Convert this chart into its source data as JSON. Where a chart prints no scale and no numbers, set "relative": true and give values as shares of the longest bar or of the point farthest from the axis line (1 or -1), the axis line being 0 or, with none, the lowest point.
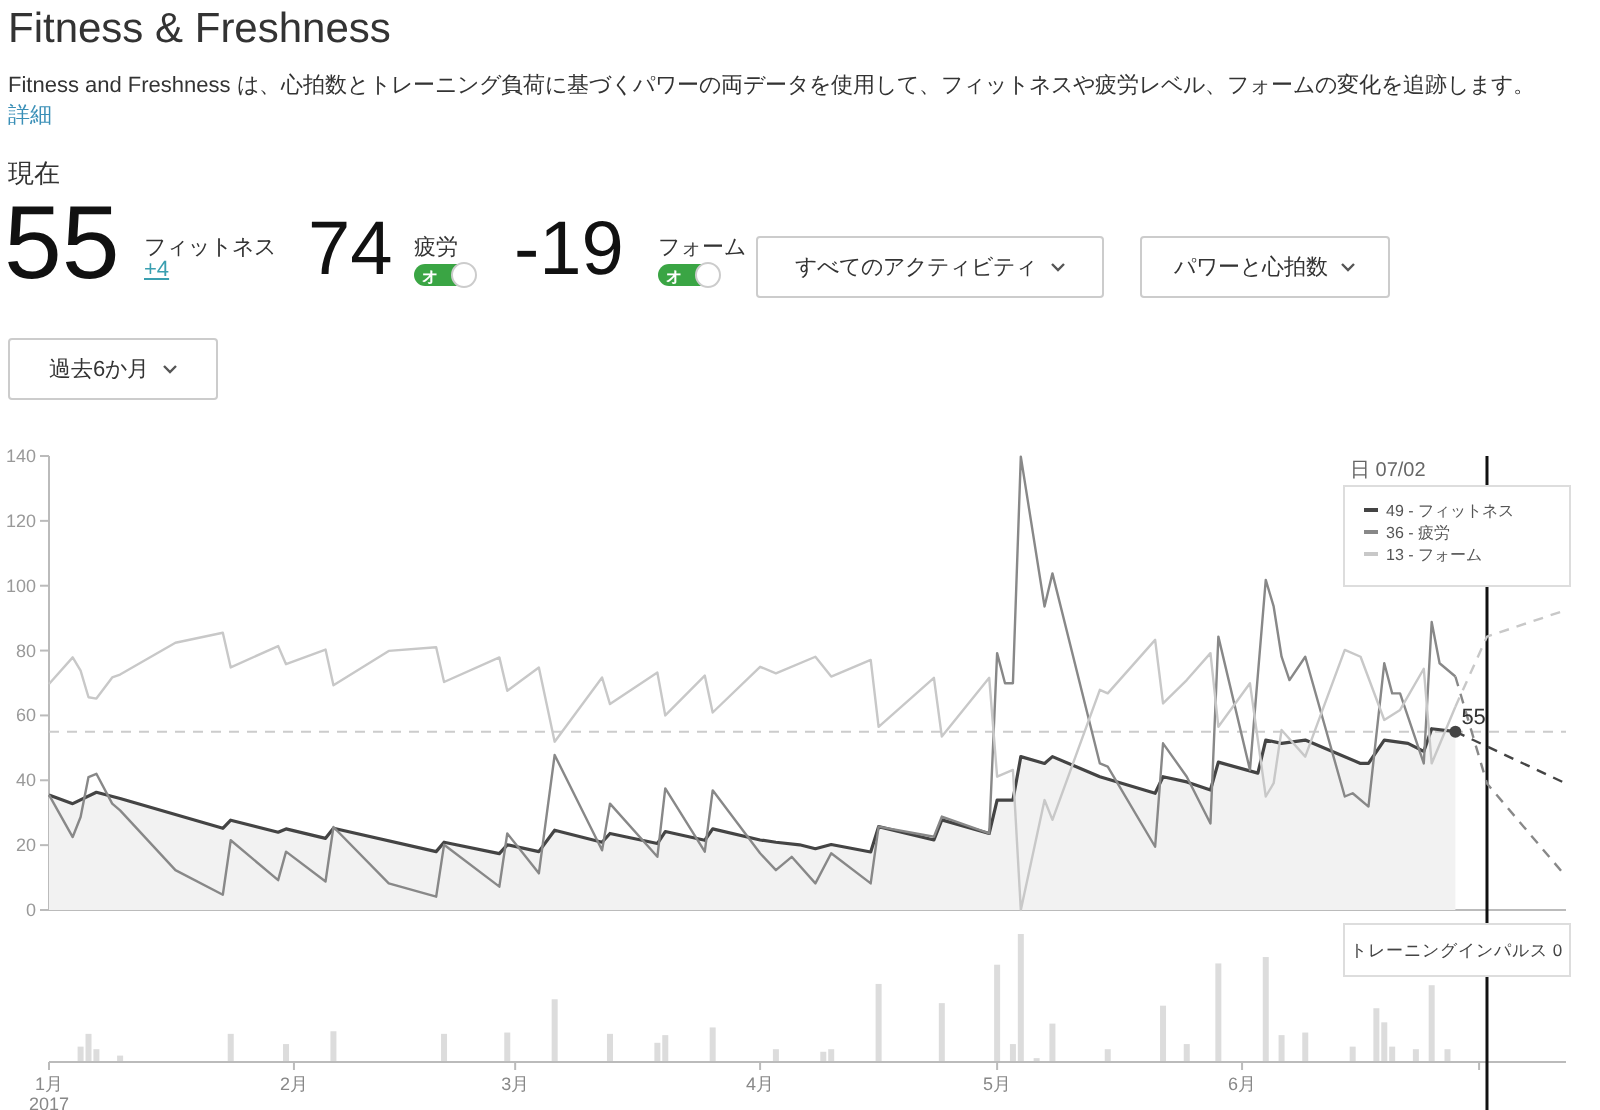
{
  "chart_data": [
    {
      "type": "other",
      "title": "Fitness & Freshness",
      "subtitle": "Fitness and Freshness は、心拍数とトレーニング負荷に基づくパワーの両データを使用して、フィットネスや疲労レベル、フォームの変化を追跡します。",
      "annotations": [
        "詳細",
        "現在",
        "55",
        "フィットネス",
        "+4",
        "74",
        "疲労",
        "-19",
        "フォーム",
        "すべてのアクティビティ",
        "パワーと心拍数",
        "過去6か月",
        "オ",
        "オ"
      ]
    },
    {
      "type": "line",
      "xlim": [
        "2017-01-01",
        "2017-07-12"
      ],
      "ylim": [
        0,
        140
      ],
      "yticks": [
        0,
        20,
        40,
        60,
        80,
        100,
        120,
        140
      ],
      "tick_labels": "y",
      "legend": "top right",
      "legend_title": "日 07/02",
      "series": [
        {
          "name": "49 - フィットネス",
          "type": "area",
          "color": "#444444",
          "x": [
            "2017-01-01",
            "2017-01-04",
            "2017-01-07",
            "2017-01-10",
            "2017-01-23",
            "2017-01-24",
            "2017-01-30",
            "2017-01-31",
            "2017-02-05",
            "2017-02-06",
            "2017-02-19",
            "2017-02-20",
            "2017-02-27",
            "2017-02-28",
            "2017-03-04",
            "2017-03-06",
            "2017-03-12",
            "2017-03-13",
            "2017-03-19",
            "2017-03-20",
            "2017-03-25",
            "2017-03-26",
            "2017-04-01",
            "2017-04-03",
            "2017-04-06",
            "2017-04-08",
            "2017-04-10",
            "2017-04-15",
            "2017-04-16",
            "2017-04-23",
            "2017-04-24",
            "2017-04-30",
            "2017-05-01",
            "2017-05-03",
            "2017-05-04",
            "2017-05-07",
            "2017-05-08",
            "2017-05-14",
            "2017-05-21",
            "2017-05-22",
            "2017-05-25",
            "2017-05-28",
            "2017-05-29",
            "2017-06-03",
            "2017-06-04",
            "2017-06-06",
            "2017-06-09",
            "2017-06-16",
            "2017-06-17",
            "2017-06-19",
            "2017-06-22",
            "2017-06-24",
            "2017-06-25",
            "2017-06-28"
          ],
          "values": [
            35.5,
            32.8,
            36.3,
            34.4,
            25.2,
            27.7,
            24,
            25,
            22.1,
            25.2,
            18,
            20.9,
            17.4,
            20.1,
            18,
            24.6,
            20.9,
            23.6,
            20.5,
            24.2,
            21.5,
            25,
            21.6,
            20.9,
            20.1,
            18.9,
            20.2,
            17.9,
            25.7,
            21.6,
            27.8,
            23.6,
            33.9,
            33.9,
            47.3,
            45.2,
            47.3,
            41.1,
            36,
            41.1,
            39.5,
            37,
            45.6,
            42.2,
            52.4,
            51.4,
            52.4,
            45.2,
            45.2,
            52.4,
            51.4,
            48.9,
            55.9,
            55
          ]
        },
        {
          "name": "36 - 疲労",
          "color": "#888888",
          "x": [
            "2017-01-01",
            "2017-01-04",
            "2017-01-05",
            "2017-01-06",
            "2017-01-07",
            "2017-01-09",
            "2017-01-10",
            "2017-01-17",
            "2017-01-23",
            "2017-01-24",
            "2017-01-30",
            "2017-01-31",
            "2017-02-05",
            "2017-02-06",
            "2017-02-13",
            "2017-02-19",
            "2017-02-20",
            "2017-02-27",
            "2017-02-28",
            "2017-03-04",
            "2017-03-06",
            "2017-03-12",
            "2017-03-13",
            "2017-03-19",
            "2017-03-20",
            "2017-03-25",
            "2017-03-26",
            "2017-04-01",
            "2017-04-03",
            "2017-04-05",
            "2017-04-08",
            "2017-04-10",
            "2017-04-15",
            "2017-04-16",
            "2017-04-23",
            "2017-04-24",
            "2017-04-30",
            "2017-05-01",
            "2017-05-02",
            "2017-05-03",
            "2017-05-04",
            "2017-05-07",
            "2017-05-08",
            "2017-05-14",
            "2017-05-15",
            "2017-05-21",
            "2017-05-22",
            "2017-05-25",
            "2017-05-28",
            "2017-05-29",
            "2017-06-02",
            "2017-06-04",
            "2017-06-05",
            "2017-06-06",
            "2017-06-07",
            "2017-06-09",
            "2017-06-14",
            "2017-06-15",
            "2017-06-17",
            "2017-06-19",
            "2017-06-20",
            "2017-06-21",
            "2017-06-24",
            "2017-06-25",
            "2017-06-26",
            "2017-06-28"
          ],
          "values": [
            35.5,
            22.5,
            28.7,
            41,
            42,
            32.8,
            30.7,
            12.3,
            4.7,
            21.5,
            9.2,
            18,
            8.8,
            25.6,
            8.2,
            4.1,
            20.1,
            7.2,
            23.6,
            11.3,
            47.8,
            18.4,
            32.8,
            16.4,
            37.5,
            18,
            36.9,
            17.5,
            12.3,
            16.4,
            8.2,
            17.5,
            8.2,
            25.7,
            22.6,
            28.8,
            23.6,
            79.2,
            69.9,
            69.9,
            139.8,
            93.6,
            103.8,
            45.2,
            44.2,
            19.5,
            51.4,
            41.1,
            26.7,
            84.3,
            43.2,
            101.8,
            93.6,
            78.1,
            70.9,
            78.1,
            35,
            36,
            31.9,
            76.1,
            66.8,
            66.8,
            45.2,
            88.8,
            76.1,
            72
          ]
        },
        {
          "name": "13 - フォーム",
          "color": "#c8c8c8",
          "x": [
            "2017-01-01",
            "2017-01-04",
            "2017-01-05",
            "2017-01-06",
            "2017-01-07",
            "2017-01-09",
            "2017-01-10",
            "2017-01-17",
            "2017-01-23",
            "2017-01-24",
            "2017-01-30",
            "2017-01-31",
            "2017-02-05",
            "2017-02-06",
            "2017-02-13",
            "2017-02-19",
            "2017-02-20",
            "2017-02-27",
            "2017-02-28",
            "2017-03-04",
            "2017-03-06",
            "2017-03-12",
            "2017-03-13",
            "2017-03-19",
            "2017-03-20",
            "2017-03-25",
            "2017-03-26",
            "2017-04-01",
            "2017-04-03",
            "2017-04-08",
            "2017-04-10",
            "2017-04-15",
            "2017-04-16",
            "2017-04-23",
            "2017-04-24",
            "2017-04-30",
            "2017-05-01",
            "2017-05-03",
            "2017-05-04",
            "2017-05-07",
            "2017-05-08",
            "2017-05-14",
            "2017-05-15",
            "2017-05-21",
            "2017-05-22",
            "2017-05-25",
            "2017-05-28",
            "2017-05-29",
            "2017-06-02",
            "2017-06-04",
            "2017-06-05",
            "2017-06-06",
            "2017-06-09",
            "2017-06-14",
            "2017-06-16",
            "2017-06-19",
            "2017-06-21",
            "2017-06-24",
            "2017-06-25",
            "2017-06-28"
          ],
          "values": [
            69.7,
            77.9,
            73.8,
            65.6,
            65.2,
            71.7,
            72.6,
            82.4,
            85.5,
            74.8,
            81.4,
            75.8,
            80.3,
            69.3,
            79.9,
            81,
            70.3,
            77.9,
            67.6,
            74.8,
            51.9,
            71.7,
            63.5,
            73.2,
            60,
            72.3,
            60.9,
            75,
            73,
            78.1,
            72,
            77.1,
            56.5,
            71.6,
            53.5,
            71.6,
            41.1,
            43.2,
            0,
            33.9,
            27.8,
            67.9,
            66.8,
            83.3,
            63.7,
            70.9,
            79.2,
            56.5,
            69.9,
            35,
            39.1,
            55.5,
            47.3,
            80.2,
            78.1,
            58.6,
            61.7,
            74.4,
            45.2,
            62.7
          ]
        },
        {
          "color": "#444444",
          "line_style": "dashed",
          "x": [
            "2017-06-28",
            "2017-07-12"
          ],
          "values": [
            55,
            39
          ]
        },
        {
          "color": "#888888",
          "line_style": "dashed",
          "x": [
            "2017-06-28",
            "2017-07-02",
            "2017-07-12"
          ],
          "values": [
            72,
            39,
            10.3
          ]
        },
        {
          "color": "#c8c8c8",
          "line_style": "dashed",
          "x": [
            "2017-06-28",
            "2017-07-02",
            "2017-07-12"
          ],
          "values": [
            62.7,
            84.3,
            92.5
          ]
        }
      ],
      "ref_lines": [
        {
          "axis": "y",
          "value": 55,
          "color": "#cccccc",
          "line_style": "dashed"
        },
        {
          "axis": "x",
          "value": "2017-07-02",
          "color": "#111111"
        }
      ],
      "annotations": [
        {
          "text": "55",
          "x": "2017-06-28",
          "y": 55
        }
      ]
    },
    {
      "type": "bar",
      "relative": true,
      "color": "#dcdcdc",
      "xlim": [
        "2017-01-01",
        "2017-07-12"
      ],
      "tick_labels": "x",
      "xticks": [
        {
          "value": "2017-01-01",
          "label": "1月"
        },
        {
          "value": "2017-02-01",
          "label": "2月"
        },
        {
          "value": "2017-03-01",
          "label": "3月"
        },
        {
          "value": "2017-04-01",
          "label": "4月"
        },
        {
          "value": "2017-05-01",
          "label": "5月"
        },
        {
          "value": "2017-06-01",
          "label": "6月"
        },
        {
          "value": "2017-07-01",
          "label": null
        }
      ],
      "x": [
        "2017-01-05",
        "2017-01-06",
        "2017-01-07",
        "2017-01-10",
        "2017-01-24",
        "2017-01-31",
        "2017-02-06",
        "2017-02-20",
        "2017-02-28",
        "2017-03-06",
        "2017-03-13",
        "2017-03-19",
        "2017-03-20",
        "2017-03-26",
        "2017-04-03",
        "2017-04-09",
        "2017-04-10",
        "2017-04-16",
        "2017-04-24",
        "2017-05-01",
        "2017-05-03",
        "2017-05-04",
        "2017-05-06",
        "2017-05-08",
        "2017-05-15",
        "2017-05-22",
        "2017-05-25",
        "2017-05-29",
        "2017-06-04",
        "2017-06-06",
        "2017-06-09",
        "2017-06-15",
        "2017-06-18",
        "2017-06-19",
        "2017-06-20",
        "2017-06-23",
        "2017-06-25",
        "2017-06-27"
      ],
      "values": [
        0.12,
        0.22,
        0.1,
        0.05,
        0.22,
        0.14,
        0.24,
        0.22,
        0.23,
        0.49,
        0.22,
        0.15,
        0.21,
        0.27,
        0.1,
        0.08,
        0.1,
        0.61,
        0.46,
        0.76,
        0.14,
        1,
        0.03,
        0.3,
        0.1,
        0.44,
        0.14,
        0.77,
        0.82,
        0.21,
        0.23,
        0.12,
        0.42,
        0.31,
        0.12,
        0.1,
        0.6,
        0.1
      ],
      "ref_lines": [
        {
          "axis": "x",
          "value": "2017-07-02",
          "color": "#111111"
        }
      ],
      "annotations": [
        "2017",
        "トレーニングインパルス 0"
      ]
    }
  ]
}
